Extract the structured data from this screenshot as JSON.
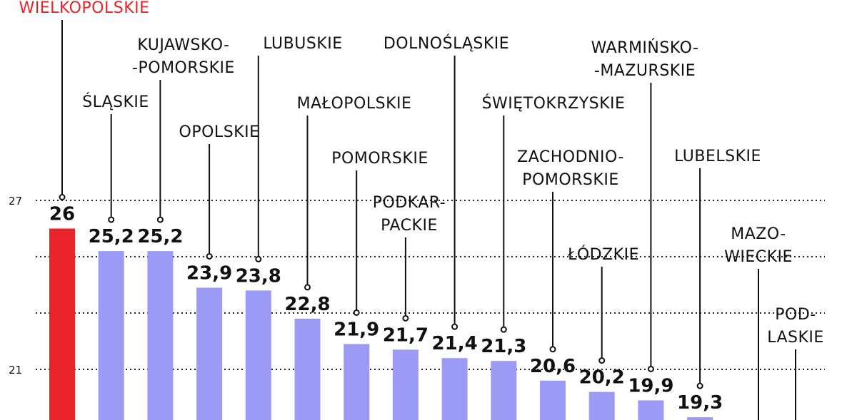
{
  "chart_data": {
    "type": "bar",
    "categories": [
      [
        "WIELKOPOLSKIE"
      ],
      [
        "ŚLĄSKIE"
      ],
      [
        "KUJAWSKO-",
        "-POMORSKIE"
      ],
      [
        "OPOLSKIE"
      ],
      [
        "LUBUSKIE"
      ],
      [
        "MAŁOPOLSKIE"
      ],
      [
        "POMORSKIE"
      ],
      [
        "PODKAR-",
        "PACKIE"
      ],
      [
        "DOLNOŚLĄSKIE"
      ],
      [
        "ŚWIĘTOKRZYSKIE"
      ],
      [
        "ZACHODNIO-",
        "POMORSKIE"
      ],
      [
        "ŁÓDZKIE"
      ],
      [
        "WARMIŃSKO-",
        "-MAZURSKIE"
      ],
      [
        "LUBELSKIE"
      ],
      [
        "MAZO-",
        "WIECKIE"
      ],
      [
        "POD-",
        "LASKIE"
      ]
    ],
    "values": [
      26,
      25.2,
      25.2,
      23.9,
      23.8,
      22.8,
      21.9,
      21.7,
      21.4,
      21.3,
      20.6,
      20.2,
      19.9,
      19.3,
      null,
      null
    ],
    "value_labels": [
      "26",
      "25,2",
      "25,2",
      "23,9",
      "23,8",
      "22,8",
      "21,9",
      "21,7",
      "21,4",
      "21,3",
      "20,6",
      "20,2",
      "19,9",
      "19,3",
      "",
      ""
    ],
    "y_ticks": [
      {
        "value": 27,
        "label": "27"
      },
      {
        "value": 21,
        "label": "21"
      }
    ],
    "grid_extra": [
      25,
      23
    ],
    "colors": {
      "highlight": "#e8242a",
      "bar": "#9b9bf5",
      "highlight_label": "#e8242a",
      "text": "#111111"
    }
  }
}
